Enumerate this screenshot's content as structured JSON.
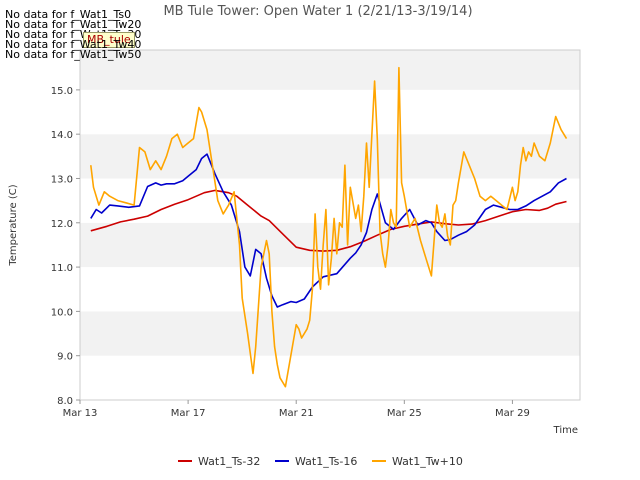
{
  "chart_data": {
    "type": "line",
    "title": "MB Tule Tower: Open Water 1 (2/21/13-3/19/14)",
    "xlabel": "Time",
    "ylabel": "Temperature (C)",
    "xlim": [
      0,
      18.5
    ],
    "ylim": [
      8.0,
      15.9
    ],
    "x_ticks": [
      {
        "value": 0,
        "label": "Mar 13"
      },
      {
        "value": 4,
        "label": "Mar 17"
      },
      {
        "value": 8,
        "label": "Mar 21"
      },
      {
        "value": 12,
        "label": "Mar 25"
      },
      {
        "value": 16,
        "label": "Mar 29"
      }
    ],
    "y_ticks": [
      {
        "value": 8.0,
        "label": "8.0"
      },
      {
        "value": 9.0,
        "label": "9.0"
      },
      {
        "value": 10.0,
        "label": "10.0"
      },
      {
        "value": 11.0,
        "label": "11.0"
      },
      {
        "value": 12.0,
        "label": "12.0"
      },
      {
        "value": 13.0,
        "label": "13.0"
      },
      {
        "value": 14.0,
        "label": "14.0"
      },
      {
        "value": 15.0,
        "label": "15.0"
      }
    ],
    "series": [
      {
        "name": "Wat1_Ts-32",
        "color": "#cc0000",
        "x": [
          0.4,
          1.0,
          1.5,
          2.0,
          2.5,
          3.0,
          3.5,
          4.0,
          4.3,
          4.6,
          5.0,
          5.5,
          5.8,
          6.2,
          6.7,
          7.0,
          7.5,
          8.0,
          8.5,
          9.0,
          9.5,
          10.0,
          10.5,
          11.0,
          11.5,
          12.0,
          12.5,
          13.0,
          13.5,
          14.0,
          14.5,
          15.0,
          15.5,
          16.0,
          16.5,
          17.0,
          17.3,
          17.6,
          18.0
        ],
        "y": [
          11.82,
          11.92,
          12.02,
          12.08,
          12.15,
          12.3,
          12.42,
          12.52,
          12.6,
          12.68,
          12.73,
          12.68,
          12.6,
          12.4,
          12.15,
          12.05,
          11.75,
          11.45,
          11.38,
          11.36,
          11.38,
          11.46,
          11.58,
          11.72,
          11.85,
          11.92,
          11.97,
          12.02,
          11.98,
          11.95,
          11.97,
          12.05,
          12.15,
          12.25,
          12.3,
          12.28,
          12.33,
          12.42,
          12.48
        ]
      },
      {
        "name": "Wat1_Ts-16",
        "color": "#0000cc",
        "x": [
          0.4,
          0.6,
          0.8,
          1.1,
          1.4,
          1.8,
          2.2,
          2.5,
          2.8,
          3.0,
          3.2,
          3.5,
          3.8,
          4.0,
          4.3,
          4.5,
          4.7,
          5.0,
          5.3,
          5.6,
          5.9,
          6.1,
          6.3,
          6.5,
          6.7,
          6.9,
          7.1,
          7.3,
          7.5,
          7.8,
          8.0,
          8.3,
          8.6,
          9.0,
          9.5,
          10.0,
          10.2,
          10.4,
          10.6,
          10.8,
          11.0,
          11.3,
          11.6,
          11.9,
          12.2,
          12.5,
          12.8,
          13.0,
          13.2,
          13.5,
          13.7,
          14.0,
          14.3,
          14.6,
          15.0,
          15.3,
          15.6,
          15.9,
          16.2,
          16.5,
          16.8,
          17.1,
          17.4,
          17.7,
          18.0
        ],
        "y": [
          12.1,
          12.3,
          12.22,
          12.4,
          12.38,
          12.35,
          12.38,
          12.82,
          12.9,
          12.85,
          12.88,
          12.88,
          12.95,
          13.05,
          13.2,
          13.45,
          13.55,
          13.1,
          12.7,
          12.4,
          11.8,
          11.0,
          10.8,
          11.4,
          11.3,
          10.75,
          10.35,
          10.1,
          10.15,
          10.22,
          10.2,
          10.28,
          10.55,
          10.78,
          10.85,
          11.2,
          11.32,
          11.5,
          11.78,
          12.3,
          12.65,
          12.0,
          11.85,
          12.1,
          12.3,
          11.95,
          12.05,
          12.0,
          11.8,
          11.6,
          11.62,
          11.72,
          11.8,
          11.95,
          12.3,
          12.4,
          12.35,
          12.3,
          12.3,
          12.38,
          12.5,
          12.6,
          12.7,
          12.9,
          13.0
        ]
      },
      {
        "name": "Wat1_Tw+10",
        "color": "#ffa500",
        "x": [
          0.4,
          0.5,
          0.7,
          0.9,
          1.1,
          1.4,
          1.7,
          2.0,
          2.2,
          2.4,
          2.6,
          2.8,
          3.0,
          3.2,
          3.4,
          3.6,
          3.8,
          4.0,
          4.2,
          4.4,
          4.5,
          4.7,
          4.9,
          5.1,
          5.3,
          5.5,
          5.7,
          5.9,
          6.0,
          6.2,
          6.4,
          6.5,
          6.7,
          6.9,
          7.0,
          7.1,
          7.2,
          7.3,
          7.4,
          7.6,
          7.8,
          8.0,
          8.1,
          8.2,
          8.4,
          8.5,
          8.6,
          8.7,
          8.8,
          8.9,
          9.0,
          9.1,
          9.2,
          9.3,
          9.4,
          9.5,
          9.6,
          9.7,
          9.8,
          9.9,
          10.0,
          10.2,
          10.3,
          10.4,
          10.5,
          10.6,
          10.7,
          10.8,
          10.9,
          11.0,
          11.1,
          11.2,
          11.3,
          11.4,
          11.5,
          11.6,
          11.7,
          11.8,
          11.9,
          12.0,
          12.2,
          12.4,
          12.6,
          12.8,
          13.0,
          13.1,
          13.2,
          13.3,
          13.4,
          13.5,
          13.6,
          13.7,
          13.8,
          13.9,
          14.0,
          14.2,
          14.4,
          14.6,
          14.8,
          15.0,
          15.2,
          15.4,
          15.6,
          15.8,
          16.0,
          16.1,
          16.2,
          16.3,
          16.4,
          16.5,
          16.6,
          16.7,
          16.8,
          17.0,
          17.2,
          17.4,
          17.6,
          17.8,
          18.0
        ],
        "y": [
          13.3,
          12.8,
          12.4,
          12.7,
          12.6,
          12.5,
          12.45,
          12.4,
          13.7,
          13.6,
          13.2,
          13.4,
          13.2,
          13.5,
          13.9,
          14.0,
          13.7,
          13.8,
          13.9,
          14.6,
          14.5,
          14.1,
          13.3,
          12.5,
          12.2,
          12.4,
          12.7,
          11.5,
          10.3,
          9.5,
          8.6,
          9.2,
          11.0,
          11.6,
          11.3,
          10.0,
          9.2,
          8.8,
          8.5,
          8.3,
          9.0,
          9.7,
          9.6,
          9.4,
          9.6,
          9.8,
          10.5,
          12.2,
          11.0,
          10.5,
          11.5,
          12.3,
          10.6,
          11.2,
          12.1,
          11.3,
          12.0,
          11.9,
          13.3,
          11.5,
          12.8,
          12.1,
          12.4,
          11.8,
          12.6,
          13.8,
          12.8,
          14.0,
          15.2,
          13.9,
          11.8,
          11.3,
          11.0,
          11.5,
          12.3,
          12.0,
          11.9,
          15.5,
          12.9,
          12.6,
          11.9,
          12.1,
          11.6,
          11.2,
          10.8,
          11.6,
          12.4,
          12.0,
          11.9,
          12.2,
          11.7,
          11.5,
          12.4,
          12.5,
          12.9,
          13.6,
          13.3,
          13.0,
          12.6,
          12.5,
          12.6,
          12.5,
          12.4,
          12.3,
          12.8,
          12.5,
          12.7,
          13.3,
          13.7,
          13.4,
          13.6,
          13.5,
          13.8,
          13.5,
          13.4,
          13.8,
          14.4,
          14.1,
          13.9
        ]
      }
    ],
    "legend_position": "bottom",
    "grid": "horizontal-bands"
  },
  "nodata_messages": [
    "No data for f_Wat1_Ts0",
    "No data for f_Wat1_Tw20",
    "No data for f_Wat1_Tw30",
    "No data for f_Wat1_Tw40",
    "No data for f_Wat1_Tw50"
  ],
  "badge_label": "MB_tule"
}
